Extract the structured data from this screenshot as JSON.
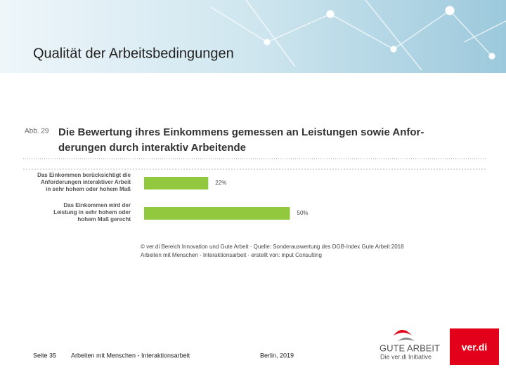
{
  "header": {
    "title": "Qualität der Arbeitsbedingungen"
  },
  "chart_data": {
    "type": "bar",
    "orientation": "horizontal",
    "figure_label": "Abb. 29",
    "title": [
      "Die Bewertung ihres Einkommens gemessen an Leistungen sowie Anfor-",
      "derungen durch interaktiv Arbeitende"
    ],
    "categories": [
      [
        "Das Einkommen berücksichtigt die",
        "Anforderungen interaktiver Arbeit",
        "in sehr hohem oder hohem Maß"
      ],
      [
        "Das Einkommen wird der",
        "Leistung in sehr hohem oder",
        "hohem Maß gerecht"
      ]
    ],
    "values": [
      22,
      50
    ],
    "value_labels": [
      "22%",
      "50%"
    ],
    "color": "#92c83e",
    "source": [
      "© ver.di Bereich Innovation und Gute Arbeit · Quelle: Sonderauswertung des DGB-Index Gute Arbeit 2018",
      "Arbeiten mit Menschen - Interaktionsarbeit · erstellt von: input Consulting"
    ]
  },
  "footer": {
    "page": "Seite 35",
    "topic": "Arbeiten mit Menschen - Interaktionsarbeit",
    "place_date": "Berlin, 2019"
  },
  "logos": {
    "gute_arbeit": "GUTE ARBEIT",
    "initiative": "Die ver.di Initiative",
    "verdi": "ver.di"
  }
}
